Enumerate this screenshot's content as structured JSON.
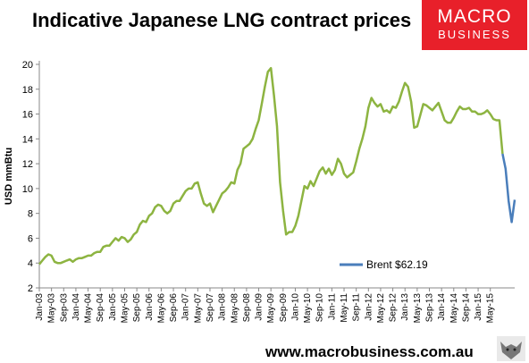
{
  "title": "Indicative Japanese LNG contract prices",
  "logo": {
    "line1": "MACRO",
    "line2": "BUSINESS",
    "color": "#e8202a"
  },
  "footer": {
    "url": "www.macrobusiness.com.au",
    "icon": "wolf-icon"
  },
  "chart_data": {
    "type": "line",
    "title": "Indicative Japanese LNG contract prices",
    "ylabel": "USD mmBtu",
    "xlabel": "",
    "ylim": [
      2,
      20
    ],
    "yticks": [
      2,
      4,
      6,
      8,
      10,
      12,
      14,
      16,
      18,
      20
    ],
    "grid": false,
    "legend_position": "lower-right",
    "x_tick_labels": [
      "Jan-03",
      "May-03",
      "Sep-03",
      "Jan-04",
      "May-04",
      "Sep-04",
      "Jan-05",
      "May-05",
      "Sep-05",
      "Jan-06",
      "May-06",
      "Sep-06",
      "Jan-07",
      "May-07",
      "Sep-07",
      "Jan-08",
      "May-08",
      "Sep-08",
      "Jan-09",
      "May-09",
      "Sep-09",
      "Jan-10",
      "May-10",
      "Sep-10",
      "Jan-11",
      "May-11",
      "Sep-11",
      "Jan-12",
      "May-12",
      "Sep-12",
      "Jan-13",
      "May-13",
      "Sep-13",
      "Jan-14",
      "May-14",
      "Sep-14",
      "Jan-15",
      "May-15"
    ],
    "series": [
      {
        "name": "",
        "color": "#8db441",
        "values": [
          3.9,
          4.2,
          4.5,
          4.7,
          4.6,
          4.1,
          4.0,
          4.0,
          4.1,
          4.2,
          4.3,
          4.1,
          4.3,
          4.4,
          4.4,
          4.5,
          4.6,
          4.6,
          4.8,
          4.9,
          4.9,
          5.3,
          5.4,
          5.4,
          5.7,
          6.0,
          5.8,
          6.1,
          6.0,
          5.7,
          5.9,
          6.3,
          6.5,
          7.1,
          7.4,
          7.3,
          7.8,
          8.0,
          8.5,
          8.7,
          8.6,
          8.2,
          8.0,
          8.2,
          8.8,
          9.0,
          9.0,
          9.4,
          9.8,
          10.0,
          10.0,
          10.4,
          10.5,
          9.6,
          8.8,
          8.6,
          8.8,
          8.1,
          8.6,
          9.1,
          9.6,
          9.8,
          10.1,
          10.5,
          10.4,
          11.5,
          12.0,
          13.2,
          13.4,
          13.6,
          14.0,
          14.8,
          15.5,
          16.8,
          18.2,
          19.4,
          19.7,
          17.5,
          15.0,
          10.5,
          8.2,
          6.3,
          6.5,
          6.5,
          7.0,
          7.8,
          9.0,
          10.2,
          10.0,
          10.6,
          10.2,
          10.8,
          11.4,
          11.7,
          11.2,
          11.6,
          11.1,
          11.5,
          12.4,
          12.0,
          11.2,
          10.9,
          11.1,
          11.3,
          12.2,
          13.2,
          14.0,
          15.0,
          16.5,
          17.3,
          16.9,
          16.6,
          16.8,
          16.2,
          16.3,
          16.1,
          16.6,
          16.5,
          17.0,
          17.8,
          18.5,
          18.2,
          17.0,
          14.9,
          15.0,
          15.9,
          16.8,
          16.7,
          16.5,
          16.3,
          16.6,
          16.9,
          16.2,
          15.5,
          15.3,
          15.3,
          15.7,
          16.2,
          16.6,
          16.4,
          16.4,
          16.5,
          16.2,
          16.2,
          16.0,
          16.0,
          16.1,
          16.3,
          16.0,
          15.6,
          15.5,
          15.5,
          12.8
        ]
      },
      {
        "name": "Brent $62.19",
        "color": "#4a7ebb",
        "start_month_offset": 152,
        "values": [
          12.8,
          11.6,
          9.0,
          7.3,
          9.1
        ]
      }
    ]
  }
}
